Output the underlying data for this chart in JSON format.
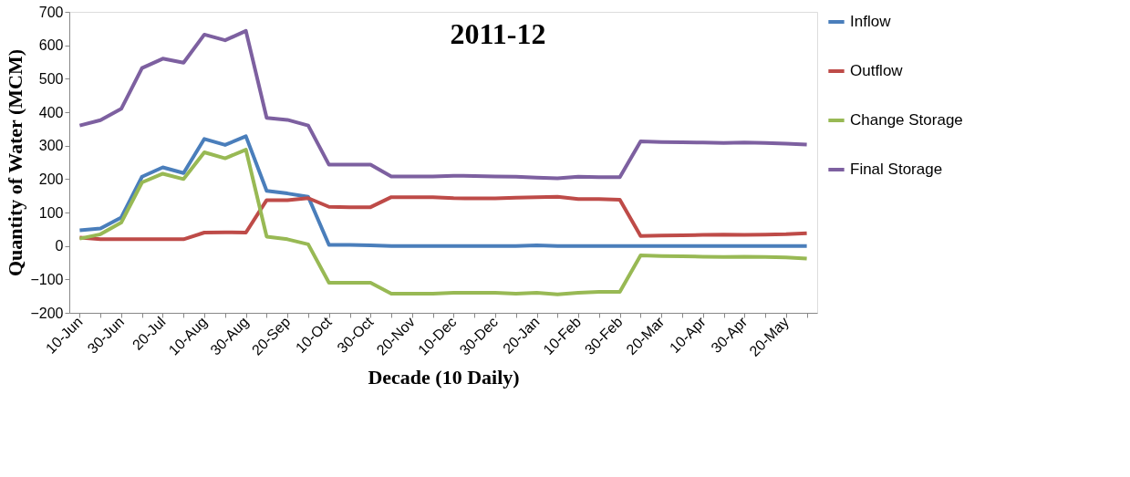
{
  "chart_data": {
    "type": "line",
    "title": "2011-12",
    "xlabel": "Decade (10 Daily)",
    "ylabel": "Quantity of Water (MCM)",
    "categories": [
      "10-Jun",
      null,
      "30-Jun",
      null,
      "20-Jul",
      null,
      "10-Aug",
      null,
      "30-Aug",
      null,
      "20-Sep",
      null,
      "10-Oct",
      null,
      "30-Oct",
      null,
      "20-Nov",
      null,
      "10-Dec",
      null,
      "30-Dec",
      null,
      "20-Jan",
      null,
      "10-Feb",
      null,
      "30-Feb",
      null,
      "20-Mar",
      null,
      "10-Apr",
      null,
      "30-Apr",
      null,
      "20-May",
      null
    ],
    "series": [
      {
        "name": "Inflow",
        "color": "#4a7ebb",
        "values": [
          47,
          52,
          85,
          207,
          235,
          218,
          320,
          302,
          328,
          165,
          157,
          147,
          3,
          3,
          2,
          0,
          0,
          0,
          0,
          0,
          0,
          0,
          2,
          0,
          0,
          0,
          0,
          0,
          0,
          0,
          0,
          0,
          0,
          0,
          0,
          0
        ]
      },
      {
        "name": "Outflow",
        "color": "#be4b48",
        "values": [
          25,
          20,
          20,
          20,
          20,
          20,
          40,
          41,
          40,
          137,
          137,
          143,
          117,
          116,
          116,
          146,
          146,
          146,
          143,
          142,
          142,
          144,
          146,
          147,
          140,
          140,
          138,
          30,
          31,
          32,
          33,
          34,
          33,
          34,
          35,
          38
        ]
      },
      {
        "name": "Change Storage",
        "color": "#98b954",
        "values": [
          22,
          35,
          70,
          190,
          216,
          200,
          280,
          262,
          288,
          28,
          20,
          5,
          -110,
          -110,
          -110,
          -143,
          -143,
          -143,
          -140,
          -140,
          -140,
          -143,
          -140,
          -145,
          -140,
          -137,
          -137,
          -28,
          -30,
          -31,
          -32,
          -33,
          -32,
          -33,
          -34,
          -38
        ]
      },
      {
        "name": "Final Storage",
        "color": "#7d60a0",
        "values": [
          360,
          376,
          410,
          532,
          560,
          548,
          632,
          615,
          643,
          383,
          377,
          360,
          243,
          243,
          243,
          208,
          208,
          208,
          210,
          209,
          208,
          207,
          204,
          202,
          207,
          206,
          206,
          313,
          311,
          310,
          309,
          308,
          309,
          308,
          306,
          303
        ]
      }
    ],
    "ylim": [
      -200,
      700
    ],
    "yticks": [
      -200,
      -100,
      0,
      100,
      200,
      300,
      400,
      500,
      600,
      700
    ],
    "grid": false,
    "legend": "right",
    "marker": "none",
    "line_style": "solid"
  }
}
